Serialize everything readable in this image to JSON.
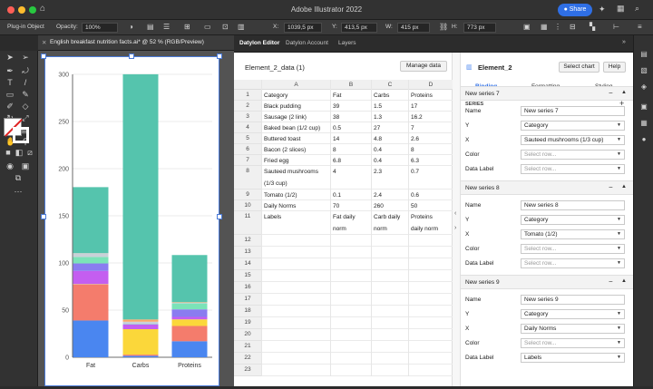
{
  "app": {
    "title": "Adobe Illustrator 2022",
    "share_label": "Share"
  },
  "control_bar": {
    "selection_label": "Plug-in Object",
    "opacity_label": "Opacity:",
    "opacity_value": "100%",
    "x_label": "X:",
    "x_value": "1039,5 px",
    "y_label": "Y:",
    "y_value": "413,5 px",
    "w_label": "W:",
    "w_value": "415 px",
    "h_label": "H:",
    "h_value": "773 px"
  },
  "document_tab": {
    "title": "English breakfast nutrition facts.ai* @ 52 % (RGB/Preview)"
  },
  "chart_data": {
    "type": "bar",
    "stacked": true,
    "categories": [
      "Fat",
      "Carbs",
      "Proteins"
    ],
    "yticks": [
      0,
      50,
      100,
      150,
      200,
      250,
      300
    ],
    "ylim": [
      0,
      300
    ],
    "grid": true,
    "series": [
      {
        "name": "Black pudding",
        "color": "#4a86f0",
        "values": [
          39,
          1.5,
          17
        ]
      },
      {
        "name": "Sausage (2 link)",
        "color": "#f47c6c",
        "values": [
          38,
          1.3,
          16.2
        ]
      },
      {
        "name": "Baked bean (1/2 cup)",
        "color": "#fbd73a",
        "values": [
          0.5,
          27,
          7
        ]
      },
      {
        "name": "Buttered toast",
        "color": "#c45ef0",
        "values": [
          14,
          4.8,
          2.6
        ]
      },
      {
        "name": "Bacon (2 slices)",
        "color": "#8a7cf0",
        "values": [
          8,
          0.4,
          8
        ]
      },
      {
        "name": "Fried egg",
        "color": "#7be3b8",
        "values": [
          6.8,
          0.4,
          6.3
        ]
      },
      {
        "name": "Sauteed mushrooms (1/3 cup)",
        "color": "#c9d1d8",
        "values": [
          4,
          2.3,
          0.7
        ]
      },
      {
        "name": "Tomato (1/2)",
        "color": "#f7a96b",
        "values": [
          0.1,
          2.4,
          0.6
        ]
      },
      {
        "name": "Daily Norms",
        "color": "#55c4ad",
        "values": [
          70,
          260,
          50
        ]
      }
    ]
  },
  "panel_tabs": [
    "Datylon Editor",
    "Datylon Account",
    "Layers"
  ],
  "data_panel": {
    "title": "Element_2_data (1)",
    "manage_label": "Manage data",
    "columns": [
      "A",
      "B",
      "C",
      "D"
    ],
    "rows": [
      {
        "n": "1",
        "a": "Category",
        "b": "Fat",
        "c": "Carbs",
        "d": "Proteins"
      },
      {
        "n": "2",
        "a": "Black pudding",
        "b": "39",
        "c": "1.5",
        "d": "17"
      },
      {
        "n": "3",
        "a": "Sausage (2 link)",
        "b": "38",
        "c": "1.3",
        "d": "16.2"
      },
      {
        "n": "4",
        "a": "Baked bean (1/2 cup)",
        "b": "0.5",
        "c": "27",
        "d": "7"
      },
      {
        "n": "5",
        "a": "Buttered toast",
        "b": "14",
        "c": "4.8",
        "d": "2.6"
      },
      {
        "n": "6",
        "a": "Bacon (2 slices)",
        "b": "8",
        "c": "0.4",
        "d": "8"
      },
      {
        "n": "7",
        "a": "Fried egg",
        "b": "6.8",
        "c": "0.4",
        "d": "6.3"
      },
      {
        "n": "8",
        "a": "Sauteed mushrooms",
        "a2": "(1/3 cup)",
        "b": "4",
        "c": "2.3",
        "d": "0.7"
      },
      {
        "n": "9",
        "a": "Tomato (1/2)",
        "b": "0.1",
        "c": "2.4",
        "d": "0.6"
      },
      {
        "n": "10",
        "a": "Daily Norms",
        "b": "70",
        "c": "260",
        "d": "50"
      },
      {
        "n": "11",
        "a": "Labels",
        "b": "Fat daily",
        "b2": "norm",
        "c": "Carb daily",
        "c2": "norm",
        "d": "Proteins",
        "d2": "daily norm"
      },
      {
        "n": "12"
      },
      {
        "n": "13"
      },
      {
        "n": "14"
      },
      {
        "n": "15"
      },
      {
        "n": "16"
      },
      {
        "n": "17"
      },
      {
        "n": "18"
      },
      {
        "n": "19"
      },
      {
        "n": "20"
      },
      {
        "n": "21"
      },
      {
        "n": "22"
      },
      {
        "n": "23"
      }
    ]
  },
  "element_panel": {
    "title": "Element_2",
    "select_chart_label": "Select chart",
    "help_label": "Help",
    "tabs": [
      "Binding",
      "Formatting",
      "Styling"
    ],
    "series_header": "SERIES",
    "field_labels": {
      "name": "Name",
      "y": "Y",
      "x": "X",
      "color": "Color",
      "data_label": "Data Label"
    },
    "placeholder": "Select row...",
    "series": [
      {
        "title": "New series 7",
        "name": "New series 7",
        "y": "Category",
        "x": "Sauteed mushrooms (1/3 cup)",
        "color": "",
        "data_label": ""
      },
      {
        "title": "New series 8",
        "name": "New series 8",
        "y": "Category",
        "x": "Tomato (1/2)",
        "color": "",
        "data_label": ""
      },
      {
        "title": "New series 9",
        "name": "New series 9",
        "y": "Category",
        "x": "Daily Norms",
        "color": "",
        "data_label": "Labels"
      }
    ]
  }
}
